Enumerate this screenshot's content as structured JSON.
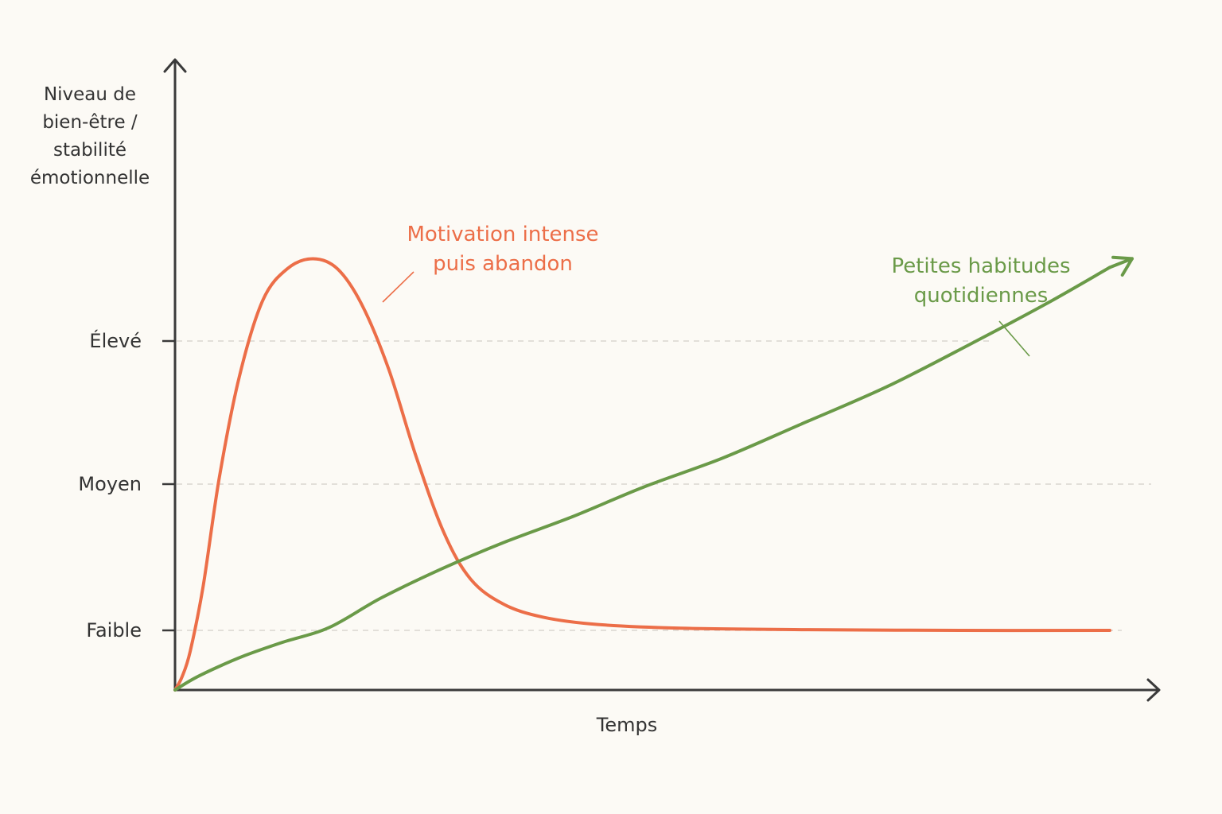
{
  "colors": {
    "background": "#fcfaf5",
    "axis": "#3a3a3a",
    "gridline": "#d9d6d0",
    "intense": "#ec6e48",
    "habits": "#6a9a48",
    "text": "#333333"
  },
  "chart_data": {
    "type": "line",
    "title": "",
    "xlabel": "Temps",
    "ylabel_lines": [
      "Niveau de",
      "bien-être /",
      "stabilité",
      "émotionnelle"
    ],
    "x_ticks": [],
    "y_ticks": [
      {
        "label": "Faible",
        "value": 1
      },
      {
        "label": "Moyen",
        "value": 2
      },
      {
        "label": "Élevé",
        "value": 3
      }
    ],
    "xlim": [
      0,
      100
    ],
    "ylim": [
      0,
      4.2
    ],
    "grid": "dashed horizontal at y ticks",
    "series": [
      {
        "name_lines": [
          "Motivation intense",
          "puis abandon"
        ],
        "color_key": "intense",
        "points": [
          [
            0,
            0
          ],
          [
            0.6,
            0.22
          ],
          [
            1.3,
            0.65
          ],
          [
            2.4,
            1.3
          ],
          [
            3.8,
            2.05
          ],
          [
            5.5,
            2.75
          ],
          [
            7.5,
            3.28
          ],
          [
            9.6,
            3.5
          ],
          [
            11.8,
            3.57
          ],
          [
            13.9,
            3.5
          ],
          [
            16.0,
            3.25
          ],
          [
            18.3,
            2.8
          ],
          [
            20.6,
            2.2
          ],
          [
            23.0,
            1.67
          ],
          [
            25.3,
            1.35
          ],
          [
            28.1,
            1.18
          ],
          [
            31.5,
            1.09
          ],
          [
            36.2,
            1.04
          ],
          [
            43.3,
            1.015
          ],
          [
            53.6,
            1.005
          ],
          [
            67.2,
            1.0
          ],
          [
            80.0,
            1.0
          ]
        ]
      },
      {
        "name_lines": [
          "Petites habitudes",
          "quotidiennes"
        ],
        "color_key": "habits",
        "points": [
          [
            0,
            0
          ],
          [
            1.6,
            0.19
          ],
          [
            3.6,
            0.38
          ],
          [
            6.0,
            0.58
          ],
          [
            9.2,
            0.8
          ],
          [
            13.2,
            1.02
          ],
          [
            17.6,
            1.22
          ],
          [
            22.8,
            1.42
          ],
          [
            28.1,
            1.6
          ],
          [
            34.1,
            1.78
          ],
          [
            40.1,
            1.98
          ],
          [
            46.8,
            2.18
          ],
          [
            53.6,
            2.42
          ],
          [
            60.9,
            2.68
          ],
          [
            68.1,
            2.98
          ],
          [
            74.6,
            3.26
          ],
          [
            80.0,
            3.51
          ]
        ]
      }
    ]
  }
}
